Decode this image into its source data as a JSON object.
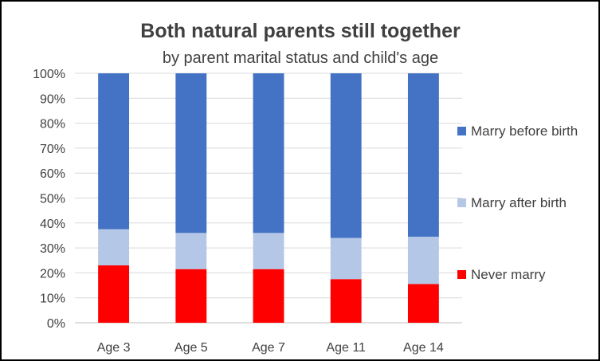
{
  "chart_data": {
    "type": "bar",
    "stacked": true,
    "title": "Both natural parents still together",
    "subtitle": "by parent marital status and child's age",
    "xlabel": "",
    "ylabel": "",
    "ylim": [
      0,
      100
    ],
    "yticks": [
      "0%",
      "10%",
      "20%",
      "30%",
      "40%",
      "50%",
      "60%",
      "70%",
      "80%",
      "90%",
      "100%"
    ],
    "categories": [
      "Age 3",
      "Age 5",
      "Age 7",
      "Age 11",
      "Age 14"
    ],
    "series": [
      {
        "name": "Never marry",
        "color": "#ff0000",
        "values": [
          23,
          21.5,
          21.5,
          17.5,
          15.5
        ]
      },
      {
        "name": "Marry after birth",
        "color": "#b4c7e7",
        "values": [
          14.5,
          14.5,
          14.5,
          16.5,
          19
        ]
      },
      {
        "name": "Marry before birth",
        "color": "#4472c4",
        "values": [
          62.5,
          64,
          64,
          66,
          65.5
        ]
      }
    ],
    "legend_order": [
      "Marry before birth",
      "Marry after birth",
      "Never marry"
    ],
    "legend_position": "right",
    "grid": true
  }
}
